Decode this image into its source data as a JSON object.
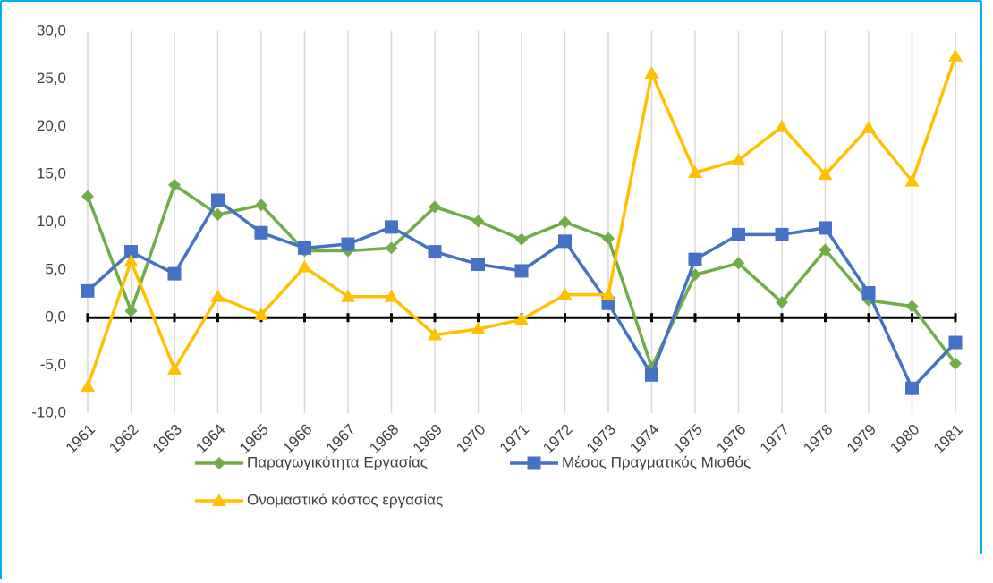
{
  "chart_data": {
    "type": "line",
    "categories": [
      "1961",
      "1962",
      "1963",
      "1964",
      "1965",
      "1966",
      "1967",
      "1968",
      "1969",
      "1970",
      "1971",
      "1972",
      "1973",
      "1974",
      "1975",
      "1976",
      "1977",
      "1978",
      "1979",
      "1980",
      "1981"
    ],
    "series": [
      {
        "name": "Παραγωγικότητα Εργασίας",
        "color": "#70ad47",
        "marker": "diamond",
        "values": [
          12.7,
          0.7,
          13.9,
          10.8,
          11.8,
          7.0,
          7.0,
          7.3,
          11.6,
          10.1,
          8.2,
          10.0,
          8.3,
          -5.2,
          4.5,
          5.7,
          1.6,
          7.1,
          1.8,
          1.2,
          -4.8
        ]
      },
      {
        "name": "Μέσος Πραγματικός Μισθός",
        "color": "#4472c4",
        "marker": "square",
        "values": [
          2.8,
          6.9,
          4.6,
          12.3,
          8.9,
          7.3,
          7.7,
          9.5,
          6.9,
          5.6,
          4.9,
          8.0,
          1.5,
          -6.0,
          6.1,
          8.7,
          8.7,
          9.4,
          2.6,
          -7.4,
          -2.6
        ]
      },
      {
        "name": "Ονομαστικό κόστος εργασίας",
        "color": "#ffc000",
        "marker": "triangle",
        "values": [
          -7.2,
          5.9,
          -5.4,
          2.2,
          0.3,
          5.3,
          2.2,
          2.2,
          -1.8,
          -1.2,
          -0.2,
          2.4,
          2.4,
          25.6,
          15.2,
          16.5,
          20.0,
          15.0,
          19.9,
          14.3,
          27.4
        ]
      }
    ],
    "ylim": [
      -10,
      30
    ],
    "yticks": [
      {
        "value": -10,
        "label": "-10,0"
      },
      {
        "value": -5,
        "label": "-5,0"
      },
      {
        "value": 0,
        "label": "0,0"
      },
      {
        "value": 5,
        "label": "5,0"
      },
      {
        "value": 10,
        "label": "10,0"
      },
      {
        "value": 15,
        "label": "15,0"
      },
      {
        "value": 20,
        "label": "20,0"
      },
      {
        "value": 25,
        "label": "25,0"
      },
      {
        "value": 30,
        "label": "30,0"
      }
    ],
    "grid": true
  }
}
